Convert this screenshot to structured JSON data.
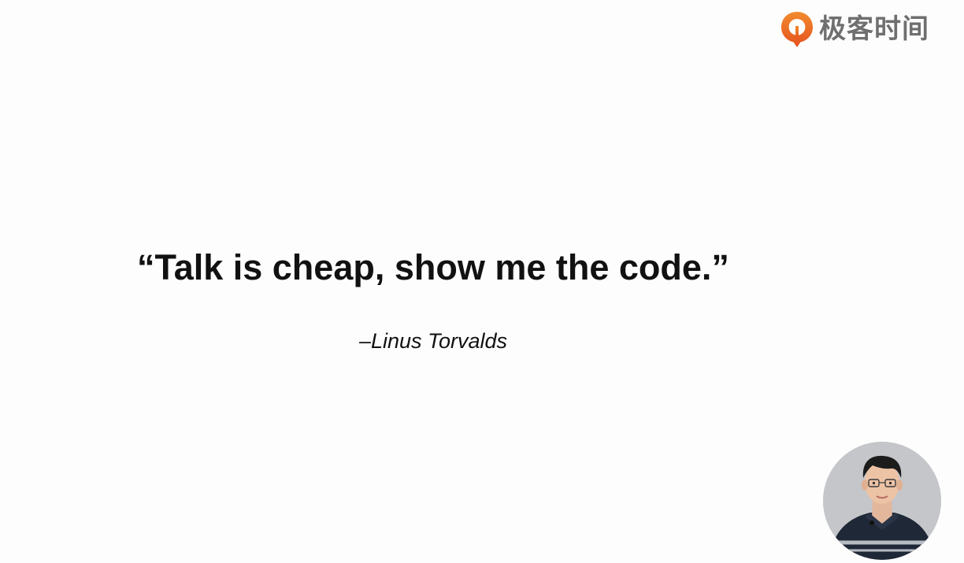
{
  "brand": {
    "name": "极客时间",
    "logo_icon": "geektime-logo-icon",
    "colors": {
      "accent": "#ee6a24",
      "text": "#6f6f6f"
    }
  },
  "slide": {
    "quote": "“Talk is cheap, show me the code.”",
    "attribution": "–Linus Torvalds"
  },
  "presenter": {
    "icon": "presenter-video-thumbnail"
  }
}
